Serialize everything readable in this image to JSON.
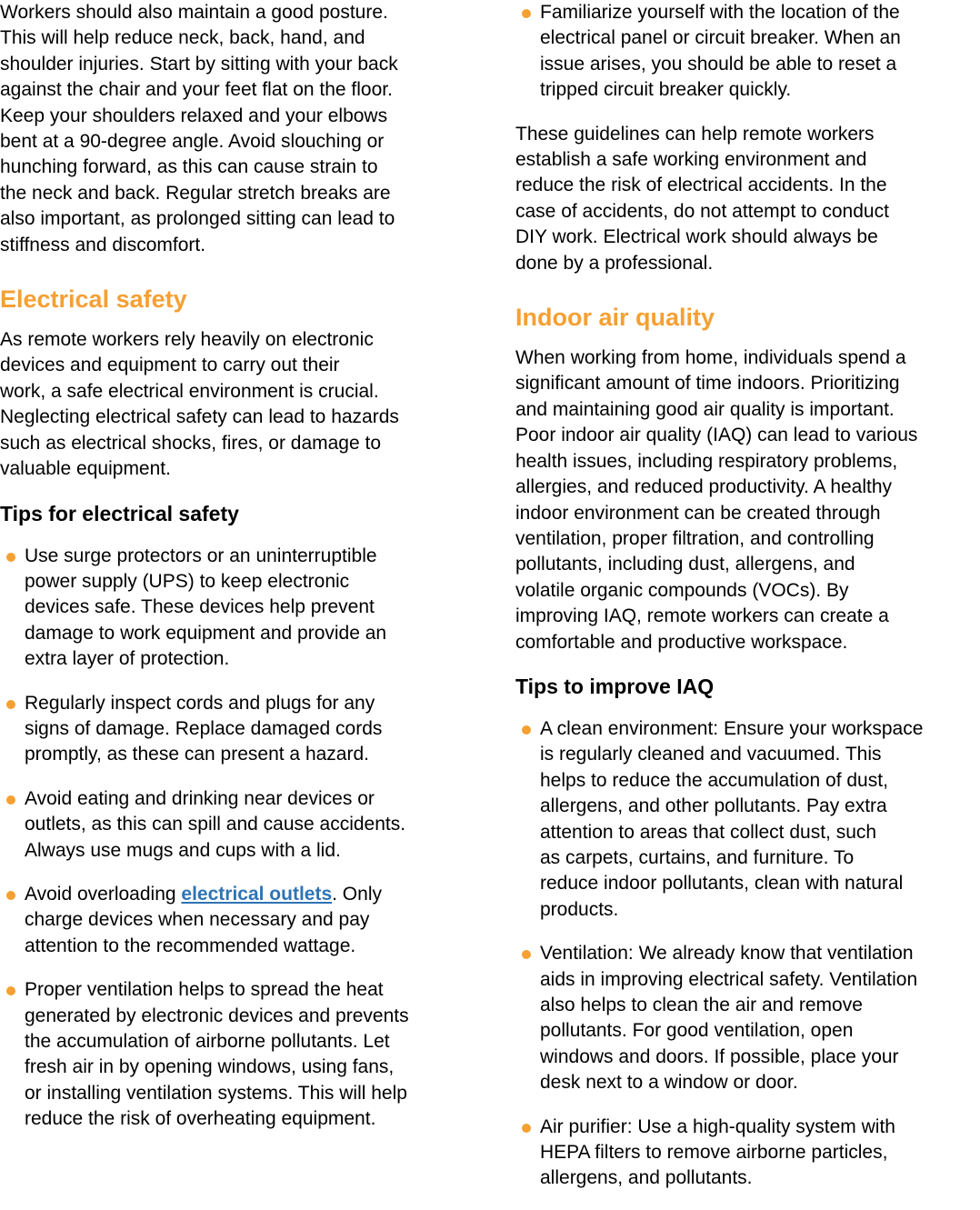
{
  "colors": {
    "heading_orange": "#F5A033",
    "bullet_orange": "#F5A033",
    "link_blue": "#2E74B5",
    "body_text": "#000000",
    "page_background": "#FFFFFF"
  },
  "left_column": {
    "intro_paragraph": "Workers should also maintain a good posture.\nThis will help reduce neck, back, hand, and\nshoulder injuries. Start by sitting with your back\nagainst the chair and your feet flat on the floor.\nKeep your shoulders relaxed and your elbows\nbent at a 90-degree angle. Avoid slouching or\nhunching forward, as this can cause strain to\nthe neck and back. Regular stretch breaks are\nalso important, as prolonged sitting can lead to\nstiffness and discomfort.",
    "electrical_safety": {
      "heading": "Electrical safety",
      "paragraph": "As remote workers rely heavily on electronic\ndevices and equipment to carry out their\nwork, a safe electrical environment is crucial.\nNeglecting electrical safety can lead to hazards\nsuch as electrical shocks, fires, or damage to\nvaluable equipment.",
      "tips_heading": "Tips for electrical safety",
      "tips": [
        {
          "text": "Use surge protectors or an uninterruptible\npower supply (UPS) to keep electronic\ndevices safe. These devices help prevent\ndamage to work equipment and provide an\nextra layer of protection."
        },
        {
          "text": "Regularly inspect cords and plugs for any\nsigns of damage. Replace damaged cords\npromptly, as these can present a hazard."
        },
        {
          "text": "Avoid eating and drinking near devices or\noutlets, as this can spill and cause accidents.\nAlways use mugs and cups with a lid."
        },
        {
          "text_before_link": "Avoid overloading ",
          "link_text": "electrical outlets",
          "text_after_link": ". Only\ncharge devices when necessary and pay\nattention to the recommended wattage."
        },
        {
          "text": "Proper ventilation helps to spread the heat\ngenerated by electronic devices and prevents\nthe accumulation of airborne pollutants. Let\nfresh air in by opening windows, using fans,\nor installing ventilation systems. This will help\nreduce the risk of overheating equipment."
        }
      ]
    }
  },
  "right_column": {
    "electrical_safety_tips_continued": [
      {
        "text": "Familiarize yourself with the location of the\nelectrical panel or circuit breaker. When an\nissue arises, you should be able to reset a\ntripped circuit breaker quickly."
      }
    ],
    "closing_paragraph": "These guidelines can help remote workers\nestablish a safe working environment and\nreduce the risk of electrical accidents. In the\ncase of accidents, do not attempt to conduct\nDIY work. Electrical work should always be\ndone by a professional.",
    "indoor_air_quality": {
      "heading": "Indoor air quality",
      "paragraph": "When working from home, individuals spend a\nsignificant amount of time indoors. Prioritizing\nand maintaining good air quality is important.\nPoor indoor air quality (IAQ) can lead to various\nhealth issues, including respiratory problems,\nallergies, and reduced productivity. A healthy\nindoor environment can be created through\nventilation, proper filtration, and controlling\npollutants, including dust, allergens, and\nvolatile organic compounds (VOCs). By\nimproving IAQ, remote workers can create a\ncomfortable and productive workspace.",
      "tips_heading": "Tips to improve IAQ",
      "tips": [
        {
          "text": "A clean environment: Ensure your workspace\nis regularly cleaned and vacuumed. This\nhelps to reduce the accumulation of dust,\nallergens, and other pollutants. Pay extra\nattention to areas that collect dust, such\nas carpets, curtains, and furniture. To\nreduce indoor pollutants, clean with natural\nproducts."
        },
        {
          "text": "Ventilation: We already know that ventilation\naids in improving electrical safety. Ventilation\nalso helps to clean the air and remove\npollutants. For good ventilation, open\nwindows and doors. If possible, place your\ndesk next to a window or door."
        },
        {
          "text": "Air purifier: Use a high-quality system with\nHEPA filters to remove airborne particles,\nallergens, and pollutants."
        }
      ]
    }
  }
}
